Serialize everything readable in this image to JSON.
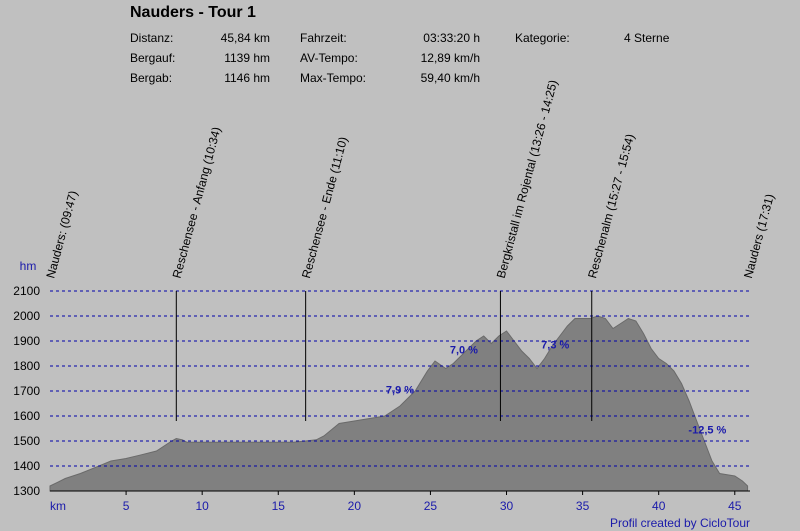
{
  "header": {
    "title": "Nauders - Tour 1",
    "stats": [
      {
        "label": "Distanz:",
        "value": "45,84 km"
      },
      {
        "label": "Bergauf:",
        "value": "1139 hm"
      },
      {
        "label": "Bergab:",
        "value": "1146 hm"
      },
      {
        "label": "Fahrzeit:",
        "value": "03:33:20 h"
      },
      {
        "label": "AV-Tempo:",
        "value": "12,89 km/h"
      },
      {
        "label": "Max-Tempo:",
        "value": "59,40 km/h"
      },
      {
        "label": "Kategorie:",
        "value": "4 Sterne"
      }
    ]
  },
  "footer": "Profil created by CicloTour",
  "chart_data": {
    "type": "area",
    "xlabel": "km",
    "ylabel": "hm",
    "xlim": [
      0,
      46
    ],
    "ylim": [
      1300,
      2100
    ],
    "x_ticks": [
      5,
      10,
      15,
      20,
      25,
      30,
      35,
      40,
      45
    ],
    "y_ticks": [
      1300,
      1400,
      1500,
      1600,
      1700,
      1800,
      1900,
      2000,
      2100
    ],
    "grid": true,
    "series": [
      {
        "x": [
          0,
          0.5,
          1,
          2,
          3,
          4,
          5,
          6,
          7,
          7.5,
          8,
          8.3,
          8.7,
          9,
          10,
          12,
          14,
          16,
          16.8,
          17.5,
          18,
          19,
          20,
          21,
          22,
          23,
          24,
          24.8,
          25.3,
          26,
          26.5,
          27,
          27.5,
          28,
          28.5,
          29,
          29.5,
          30,
          30.5,
          31,
          31.5,
          32,
          32.5,
          33,
          33.5,
          34,
          34.5,
          35,
          35.5,
          36,
          36.5,
          37,
          37.5,
          38,
          38.5,
          39,
          39.5,
          40,
          40.5,
          41,
          41.5,
          42,
          42.5,
          43,
          43.5,
          44,
          44.5,
          45,
          45.5,
          45.84
        ],
        "y": [
          1320,
          1335,
          1350,
          1370,
          1395,
          1420,
          1430,
          1445,
          1460,
          1480,
          1500,
          1510,
          1505,
          1495,
          1495,
          1495,
          1495,
          1495,
          1500,
          1505,
          1520,
          1570,
          1580,
          1590,
          1600,
          1640,
          1700,
          1780,
          1820,
          1790,
          1810,
          1840,
          1870,
          1900,
          1920,
          1890,
          1920,
          1940,
          1900,
          1860,
          1830,
          1790,
          1830,
          1880,
          1920,
          1960,
          1990,
          1990,
          1990,
          2000,
          1990,
          1950,
          1970,
          1990,
          1980,
          1930,
          1870,
          1830,
          1810,
          1780,
          1730,
          1660,
          1580,
          1500,
          1420,
          1370,
          1365,
          1360,
          1340,
          1320
        ]
      }
    ],
    "waypoints": [
      {
        "km": 0,
        "label": "Nauders: (09:47)"
      },
      {
        "km": 8.3,
        "label": "Reschensee - Anfang (10:34)"
      },
      {
        "km": 16.8,
        "label": "Reschensee - Ende (11:10)"
      },
      {
        "km": 29.6,
        "label": "Bergkristall im Rojental (13:26 - 14:25)"
      },
      {
        "km": 35.6,
        "label": "Reschenalm (15:27 - 15:54)"
      },
      {
        "km": 45.84,
        "label": "Nauders (17:31)"
      }
    ],
    "annotations": [
      {
        "x": 23,
        "y": 1690,
        "text": "7,9 %"
      },
      {
        "x": 27.2,
        "y": 1850,
        "text": "7,0 %"
      },
      {
        "x": 33.2,
        "y": 1870,
        "text": "7,3 %"
      },
      {
        "x": 43.2,
        "y": 1530,
        "text": "-12,5 %"
      }
    ],
    "colors": {
      "area": "#808080",
      "grid": "#0000aa",
      "tick": "#1a1aaa",
      "annotation": "#1a1aaa",
      "background": "#c0c0c0"
    }
  }
}
